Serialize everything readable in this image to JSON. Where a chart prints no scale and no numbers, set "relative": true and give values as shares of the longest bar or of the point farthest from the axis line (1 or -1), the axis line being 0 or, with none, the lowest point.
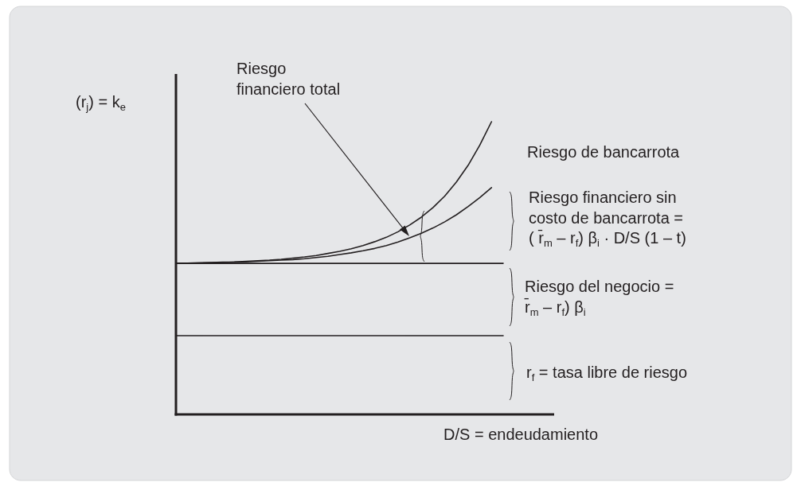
{
  "chart_data": {
    "type": "line",
    "relative": true,
    "ylabel": "(r$_{j}$) = k$_{e}$",
    "xlabel": "D/S = endeudamiento",
    "categories": [
      null,
      null,
      null,
      null,
      null,
      null,
      null,
      null,
      null,
      null,
      null,
      null,
      null,
      null,
      null,
      null,
      null,
      null,
      null,
      null,
      null,
      null,
      null,
      null,
      null,
      null,
      null,
      null,
      null
    ],
    "series": [
      {
        "color": "#231f20",
        "values": [
          0.269,
          0.269,
          0.269,
          0.269,
          0.269,
          0.269,
          0.269,
          0.269,
          0.269,
          0.269,
          0.269,
          0.269,
          0.269,
          0.269,
          0.269,
          0.269,
          0.269,
          0.269,
          0.269,
          0.269,
          0.269,
          0.269,
          0.269,
          0.269,
          0.269,
          0.269,
          0.269,
          0.269,
          0.269
        ]
      },
      {
        "color": "#231f20",
        "values": [
          0.516,
          0.516,
          0.516,
          0.516,
          0.516,
          0.516,
          0.516,
          0.516,
          0.516,
          0.516,
          0.516,
          0.516,
          0.516,
          0.516,
          0.516,
          0.516,
          0.516,
          0.516,
          0.516,
          0.516,
          0.516,
          0.516,
          0.516,
          0.516,
          0.516,
          0.516,
          0.516,
          0.516,
          0.516
        ]
      },
      {
        "color": "#231f20",
        "values": [
          0.516,
          0.517,
          0.518,
          0.519,
          0.52,
          0.521,
          0.523,
          0.525,
          0.527,
          0.53,
          0.534,
          0.538,
          0.543,
          0.55,
          0.557,
          0.566,
          0.577,
          0.59,
          0.605,
          0.624,
          0.647,
          0.674,
          0.707,
          0.746,
          0.794,
          0.851,
          0.92,
          1,
          null
        ]
      },
      {
        "color": "#231f20",
        "values": [
          0.516,
          0.517,
          0.517,
          0.518,
          0.519,
          0.52,
          0.521,
          0.523,
          0.525,
          0.527,
          0.529,
          0.532,
          0.536,
          0.54,
          0.546,
          0.552,
          0.559,
          0.567,
          0.577,
          0.589,
          0.603,
          0.619,
          0.637,
          0.658,
          0.682,
          0.71,
          0.741,
          0.775,
          null
        ]
      }
    ],
    "annotations": [
      "Riesgo\nfinanciero total",
      "Riesgo de bancarrota",
      "Riesgo financiero sin\ncosto de bancarrota =\n( r̄$_{m}$ – r$_{f}$) β$_{i}$ · D/S (1 – t)",
      "Riesgo del negocio =\nr̄$_{m}$ – r$_{f}$) β$_{i}$",
      "r$_{f}$ = tasa libre de riesgo"
    ]
  }
}
